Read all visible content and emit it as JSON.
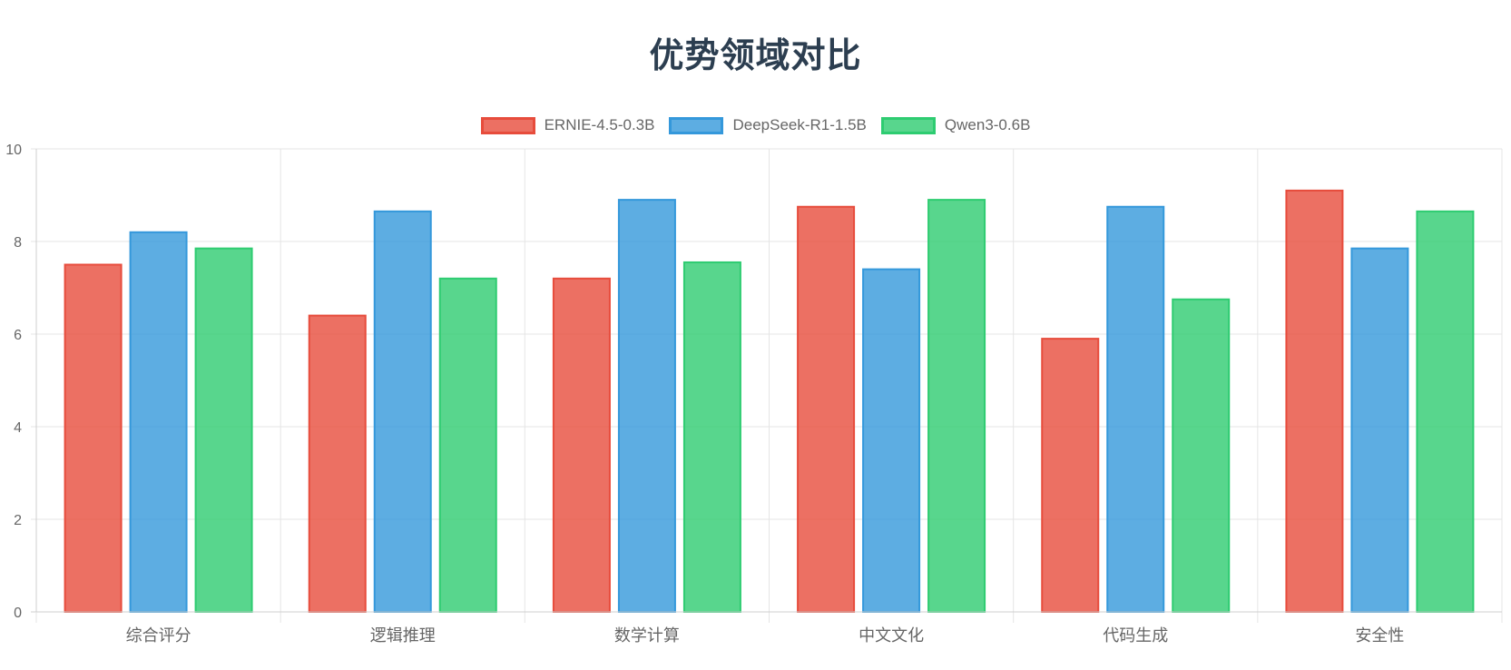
{
  "chart_data": {
    "type": "bar",
    "title": "优势领域对比",
    "categories": [
      "综合评分",
      "逻辑推理",
      "数学计算",
      "中文文化",
      "代码生成",
      "安全性"
    ],
    "series": [
      {
        "name": "ERNIE-4.5-0.3B",
        "values": [
          7.5,
          6.4,
          7.2,
          8.75,
          5.9,
          9.1
        ],
        "color": "#e74c3c"
      },
      {
        "name": "DeepSeek-R1-1.5B",
        "values": [
          8.2,
          8.65,
          8.9,
          7.4,
          8.75,
          7.85
        ],
        "color": "#3498db"
      },
      {
        "name": "Qwen3-0.6B",
        "values": [
          7.85,
          7.2,
          7.55,
          8.9,
          6.75,
          8.65
        ],
        "color": "#2ecc71"
      }
    ],
    "yticks": [
      "0",
      "2",
      "4",
      "6",
      "8",
      "10"
    ],
    "ylim": [
      0,
      10
    ],
    "grid": true,
    "legend_position": "top"
  }
}
